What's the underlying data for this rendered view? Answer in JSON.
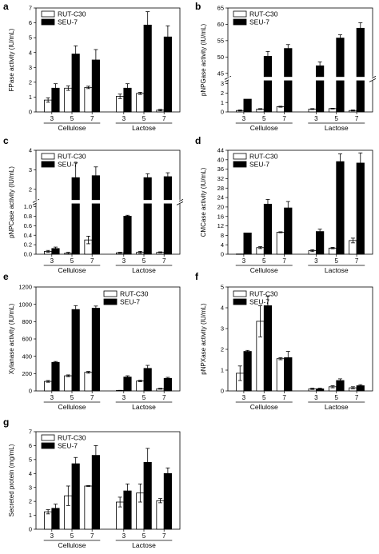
{
  "figure": {
    "background": "#ffffff",
    "bar_colors": {
      "RUT-C30": "#ffffff",
      "SEU-7": "#000000"
    }
  },
  "chart_data": [
    {
      "id": "a",
      "type": "bar",
      "panel_label": "a",
      "ylabel": "FPase activity (IU/mL)",
      "ylim": [
        0,
        7
      ],
      "yticks": [
        0,
        1,
        2,
        3,
        4,
        5,
        6,
        7
      ],
      "legend": "top-left",
      "groups": [
        "Cellulose",
        "Lactose"
      ],
      "categories": [
        "3",
        "5",
        "7"
      ],
      "series": [
        {
          "name": "RUT-C30",
          "color": "#ffffff",
          "values": [
            [
              0.8,
              1.6,
              1.65
            ],
            [
              1.05,
              1.25,
              0.12
            ]
          ],
          "errors": [
            [
              0.15,
              0.15,
              0.08
            ],
            [
              0.15,
              0.07,
              0.05
            ]
          ]
        },
        {
          "name": "SEU-7",
          "color": "#000000",
          "values": [
            [
              1.6,
              3.9,
              3.5
            ],
            [
              1.6,
              5.85,
              5.05
            ]
          ],
          "errors": [
            [
              0.3,
              0.55,
              0.7
            ],
            [
              0.3,
              0.9,
              0.75
            ]
          ]
        }
      ]
    },
    {
      "id": "b",
      "type": "bar",
      "panel_label": "b",
      "ylabel": "pNPGase activity (IU/mL)",
      "ylim": [
        0,
        65
      ],
      "yticks": [
        0,
        1,
        2,
        3,
        45,
        50,
        55,
        60,
        65
      ],
      "ybreak": [
        3.3,
        44
      ],
      "legend": "top-left",
      "groups": [
        "Cellulose",
        "Lactose"
      ],
      "categories": [
        "3",
        "5",
        "7"
      ],
      "series": [
        {
          "name": "RUT-C30",
          "color": "#ffffff",
          "values": [
            [
              0.15,
              0.3,
              0.55
            ],
            [
              0.3,
              0.35,
              0.15
            ]
          ],
          "errors": [
            [
              0.05,
              0.05,
              0.05
            ],
            [
              0.05,
              0.04,
              0.05
            ]
          ]
        },
        {
          "name": "SEU-7",
          "color": "#000000",
          "values": [
            [
              1.35,
              50.2,
              52.6
            ],
            [
              47.3,
              55.8,
              58.8
            ]
          ],
          "errors": [
            [
              0,
              1.5,
              1.2
            ],
            [
              1.2,
              1.0,
              1.7
            ]
          ]
        }
      ]
    },
    {
      "id": "c",
      "type": "bar",
      "panel_label": "c",
      "ylabel": "pNPCase activity (IU/mL)",
      "ylim": [
        0,
        4
      ],
      "yticks": [
        0.0,
        0.2,
        0.4,
        0.6,
        0.8,
        1.0,
        2,
        3,
        4
      ],
      "ybreak": [
        1.05,
        1.5
      ],
      "legend": "top-left",
      "groups": [
        "Cellulose",
        "Lactose"
      ],
      "categories": [
        "3",
        "5",
        "7"
      ],
      "series": [
        {
          "name": "RUT-C30",
          "color": "#ffffff",
          "values": [
            [
              0.06,
              0.02,
              0.3
            ],
            [
              0.03,
              0.04,
              0.04
            ]
          ],
          "errors": [
            [
              0.02,
              0.02,
              0.08
            ],
            [
              0.01,
              0.02,
              0.01
            ]
          ]
        },
        {
          "name": "SEU-7",
          "color": "#000000",
          "values": [
            [
              0.12,
              2.6,
              2.7
            ],
            [
              0.8,
              2.6,
              2.65
            ]
          ],
          "errors": [
            [
              0.03,
              0.75,
              0.45
            ],
            [
              0.02,
              0.2,
              0.2
            ]
          ]
        }
      ]
    },
    {
      "id": "d",
      "type": "bar",
      "panel_label": "d",
      "ylabel": "CMCase activity (IU/mL)",
      "ylim": [
        0,
        44
      ],
      "yticks": [
        0,
        4,
        8,
        12,
        16,
        20,
        24,
        28,
        32,
        36,
        40,
        44
      ],
      "legend": "top-left",
      "groups": [
        "Cellulose",
        "Lactose"
      ],
      "categories": [
        "3",
        "5",
        "7"
      ],
      "series": [
        {
          "name": "RUT-C30",
          "color": "#ffffff",
          "values": [
            [
              0.1,
              2.8,
              9.3
            ],
            [
              1.5,
              2.6,
              5.8
            ]
          ],
          "errors": [
            [
              0,
              0.4,
              0.2
            ],
            [
              0.4,
              0.3,
              1.0
            ]
          ]
        },
        {
          "name": "SEU-7",
          "color": "#000000",
          "values": [
            [
              9.0,
              21.2,
              19.6
            ],
            [
              9.6,
              39.2,
              38.6
            ]
          ],
          "errors": [
            [
              0,
              2.0,
              2.7
            ],
            [
              1.0,
              3.3,
              4.3
            ]
          ]
        }
      ]
    },
    {
      "id": "e",
      "type": "bar",
      "panel_label": "e",
      "ylabel": "Xylanase activity (IU/mL)",
      "ylim": [
        0,
        1200
      ],
      "yticks": [
        0,
        200,
        400,
        600,
        800,
        1000,
        1200
      ],
      "legend": "top-right",
      "groups": [
        "Cellulose",
        "Lactose"
      ],
      "categories": [
        "3",
        "5",
        "7"
      ],
      "series": [
        {
          "name": "RUT-C30",
          "color": "#ffffff",
          "values": [
            [
              110,
              175,
              215
            ],
            [
              5,
              115,
              25
            ]
          ],
          "errors": [
            [
              10,
              10,
              10
            ],
            [
              2,
              8,
              5
            ]
          ]
        },
        {
          "name": "SEU-7",
          "color": "#000000",
          "values": [
            [
              330,
              940,
              955
            ],
            [
              160,
              260,
              145
            ]
          ],
          "errors": [
            [
              10,
              45,
              25
            ],
            [
              15,
              35,
              12
            ]
          ]
        }
      ]
    },
    {
      "id": "f",
      "type": "bar",
      "panel_label": "f",
      "ylabel": "pNPXase activity (IU/mL)",
      "ylim": [
        0,
        5
      ],
      "yticks": [
        0,
        1,
        2,
        3,
        4,
        5
      ],
      "legend": "top-left",
      "groups": [
        "Cellulose",
        "Lactose"
      ],
      "categories": [
        "3",
        "5",
        "7"
      ],
      "series": [
        {
          "name": "RUT-C30",
          "color": "#ffffff",
          "values": [
            [
              0.85,
              3.35,
              1.55
            ],
            [
              0.1,
              0.2,
              0.15
            ]
          ],
          "errors": [
            [
              0.35,
              0.75,
              0.05
            ],
            [
              0.03,
              0.05,
              0.05
            ]
          ]
        },
        {
          "name": "SEU-7",
          "color": "#000000",
          "values": [
            [
              1.9,
              4.1,
              1.6
            ],
            [
              0.1,
              0.5,
              0.25
            ]
          ],
          "errors": [
            [
              0.05,
              0.45,
              0.3
            ],
            [
              0.03,
              0.08,
              0.05
            ]
          ]
        }
      ]
    },
    {
      "id": "g",
      "type": "bar",
      "panel_label": "g",
      "ylabel": "Secreted protein (mg/mL)",
      "ylim": [
        0,
        7
      ],
      "yticks": [
        0,
        1,
        2,
        3,
        4,
        5,
        6,
        7
      ],
      "legend": "top-left",
      "groups": [
        "Cellulose",
        "Lactose"
      ],
      "categories": [
        "3",
        "5",
        "7"
      ],
      "series": [
        {
          "name": "RUT-C30",
          "color": "#ffffff",
          "values": [
            [
              1.25,
              2.4,
              3.1
            ],
            [
              1.95,
              2.6,
              2.05
            ]
          ],
          "errors": [
            [
              0.15,
              0.7,
              0.03
            ],
            [
              0.35,
              0.65,
              0.15
            ]
          ]
        },
        {
          "name": "SEU-7",
          "color": "#000000",
          "values": [
            [
              1.5,
              4.7,
              5.3
            ],
            [
              2.75,
              4.8,
              4.0
            ]
          ],
          "errors": [
            [
              0.3,
              0.45,
              0.7
            ],
            [
              0.5,
              1.0,
              0.4
            ]
          ]
        }
      ]
    }
  ]
}
